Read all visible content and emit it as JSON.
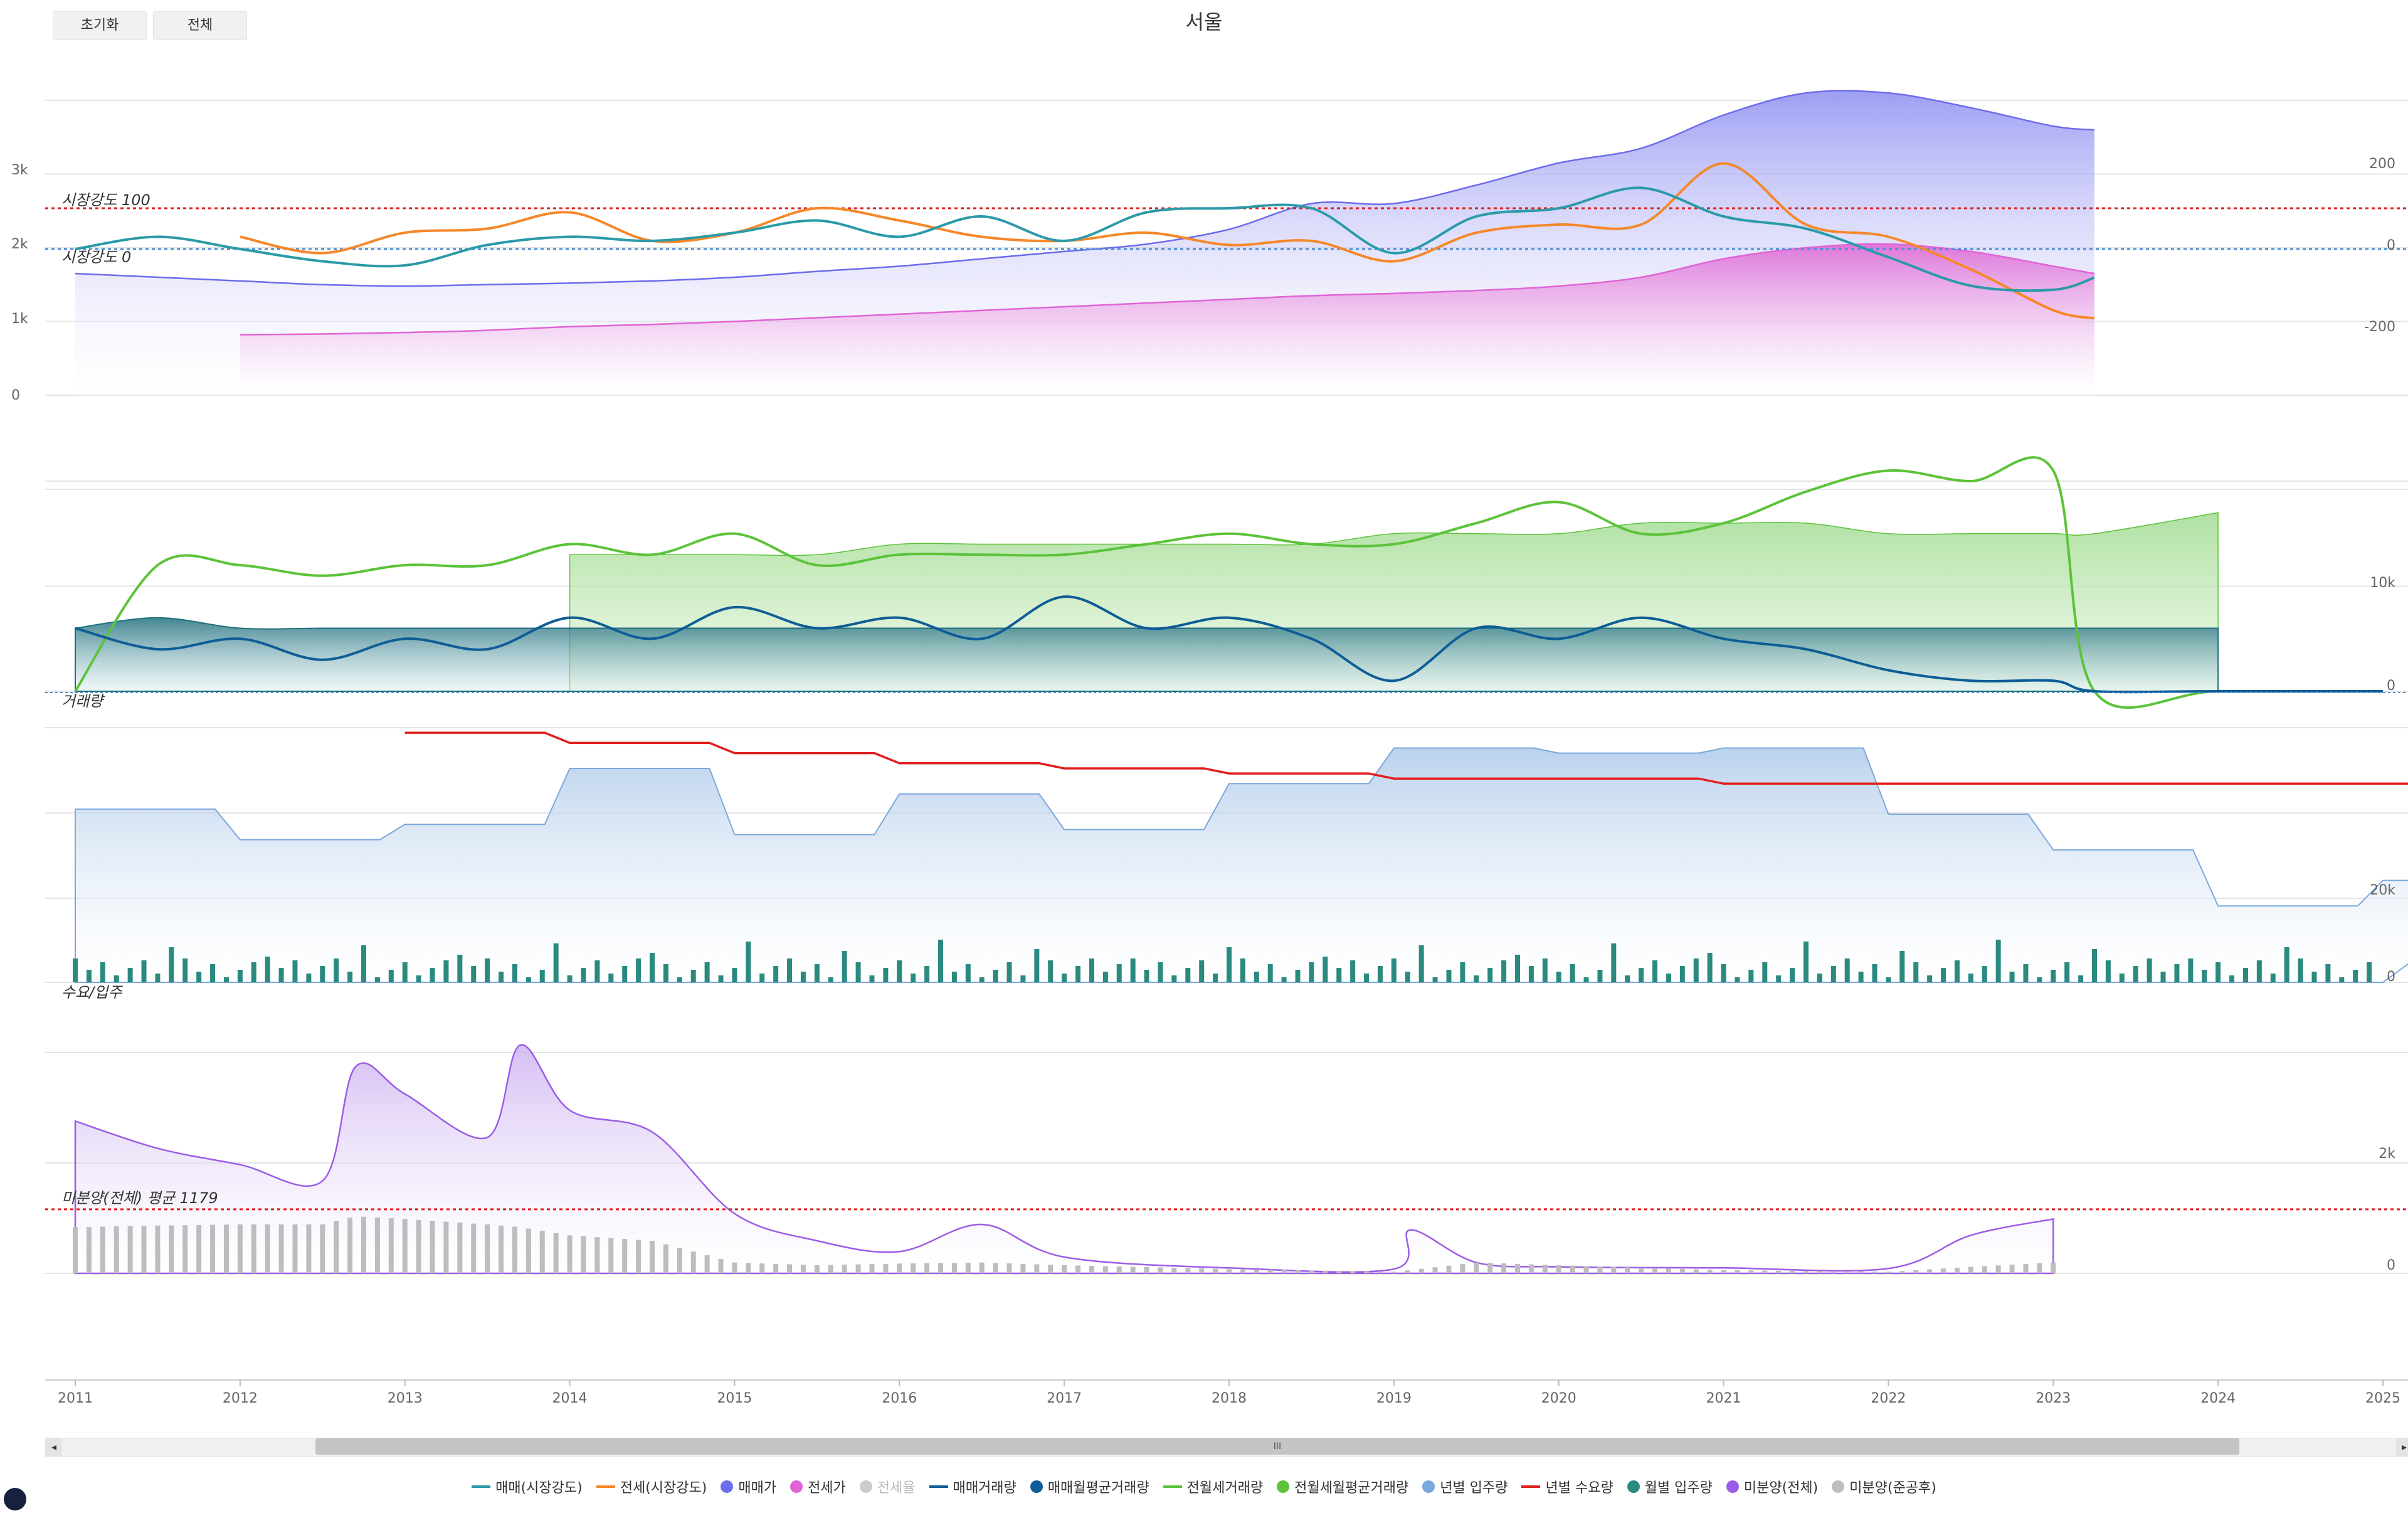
{
  "buttons": {
    "reset": "초기화",
    "all": "전체"
  },
  "title": "서울",
  "panels": {
    "p1": {
      "left_ticks": [
        "3k",
        "2k",
        "1k",
        "0"
      ],
      "right_ticks": [
        "200",
        "0",
        "-200"
      ],
      "ref_labels": [
        "시장강도 100",
        "시장강도 0"
      ]
    },
    "p2": {
      "label": "거래량",
      "right_ticks": [
        "10k",
        "0"
      ]
    },
    "p3": {
      "label": "수요/입주",
      "right_ticks": [
        "20k",
        "0"
      ]
    },
    "p4": {
      "label": "미분양(전체) 평균 1179",
      "right_ticks": [
        "2k",
        "0"
      ]
    }
  },
  "scrollbar": {
    "handle": "III",
    "left_arrow": "◂",
    "right_arrow": "▸"
  },
  "legend": [
    {
      "label": "매매(시장강도)",
      "color": "#2b9aa8",
      "kind": "line",
      "dim": false
    },
    {
      "label": "전세(시장강도)",
      "color": "#f5882a",
      "kind": "line",
      "dim": false
    },
    {
      "label": "매매가",
      "color": "#6c6cec",
      "kind": "dot",
      "dim": false
    },
    {
      "label": "전세가",
      "color": "#e064d6",
      "kind": "dot",
      "dim": false
    },
    {
      "label": "전세율",
      "color": "#cccccc",
      "kind": "dot",
      "dim": true
    },
    {
      "label": "매매거래량",
      "color": "#0e5d96",
      "kind": "line",
      "dim": false
    },
    {
      "label": "매매월평균거래량",
      "color": "#0e5d96",
      "kind": "dot",
      "dim": false
    },
    {
      "label": "전월세거래량",
      "color": "#5cc33a",
      "kind": "line",
      "dim": false
    },
    {
      "label": "전월세월평균거래량",
      "color": "#5cc33a",
      "kind": "dot",
      "dim": false
    },
    {
      "label": "년별 입주량",
      "color": "#7aa8dc",
      "kind": "dot",
      "dim": false
    },
    {
      "label": "년별 수요량",
      "color": "#e02020",
      "kind": "line",
      "dim": false
    },
    {
      "label": "월별 입주량",
      "color": "#2a8a80",
      "kind": "dot",
      "dim": false
    },
    {
      "label": "미분양(전체)",
      "color": "#9b5de5",
      "kind": "dot",
      "dim": false
    },
    {
      "label": "미분양(준공후)",
      "color": "#bdbdbd",
      "kind": "dot",
      "dim": false
    }
  ],
  "chart_data": [
    {
      "type": "area",
      "title": "서울",
      "x": [
        2011,
        2011.5,
        2012,
        2012.5,
        2013,
        2013.5,
        2014,
        2014.5,
        2015,
        2015.5,
        2016,
        2016.5,
        2017,
        2017.5,
        2018,
        2018.5,
        2019,
        2019.5,
        2020,
        2020.5,
        2021,
        2021.5,
        2022,
        2022.5,
        2023,
        2023.25
      ],
      "series": [
        {
          "name": "매매가",
          "values": [
            1.65,
            1.6,
            1.55,
            1.5,
            1.48,
            1.5,
            1.52,
            1.55,
            1.6,
            1.68,
            1.75,
            1.85,
            1.95,
            2.05,
            2.25,
            2.6,
            2.6,
            2.85,
            3.15,
            3.35,
            3.8,
            4.1,
            4.1,
            3.9,
            3.65,
            3.6
          ]
        },
        {
          "name": "전세가",
          "values": [
            null,
            null,
            0.82,
            0.83,
            0.85,
            0.88,
            0.93,
            0.96,
            1.0,
            1.05,
            1.1,
            1.15,
            1.2,
            1.25,
            1.3,
            1.35,
            1.38,
            1.42,
            1.48,
            1.6,
            1.85,
            2.0,
            2.05,
            1.95,
            1.75,
            1.65
          ]
        },
        {
          "name": "매매(시장강도)",
          "values": [
            0,
            30,
            0,
            -30,
            -40,
            10,
            30,
            20,
            40,
            70,
            30,
            80,
            20,
            90,
            100,
            100,
            -10,
            80,
            100,
            150,
            80,
            50,
            -20,
            -90,
            -100,
            -70
          ]
        },
        {
          "name": "전세(시장강도)",
          "values": [
            null,
            null,
            30,
            -10,
            40,
            50,
            90,
            20,
            40,
            100,
            70,
            30,
            20,
            40,
            10,
            20,
            -30,
            40,
            60,
            60,
            210,
            60,
            30,
            -50,
            -150,
            -170
          ]
        }
      ],
      "ylim": [
        0,
        4
      ],
      "y2lim": [
        -300,
        300
      ],
      "annotations": [
        "시장강도 100",
        "시장강도 0"
      ]
    },
    {
      "type": "line",
      "x": [
        2011,
        2011.5,
        2012,
        2012.5,
        2013,
        2013.5,
        2014,
        2014.5,
        2015,
        2015.5,
        2016,
        2016.5,
        2017,
        2017.5,
        2018,
        2018.5,
        2019,
        2019.5,
        2020,
        2020.5,
        2021,
        2021.5,
        2022,
        2022.5,
        2023,
        2023.25,
        2024,
        2025
      ],
      "series": [
        {
          "name": "매매거래량",
          "values": [
            6,
            4,
            5,
            3,
            5,
            4,
            7,
            5,
            8,
            6,
            7,
            5,
            9,
            6,
            7,
            5,
            1,
            6,
            5,
            7,
            5,
            4,
            2,
            1,
            1,
            0,
            0,
            0
          ]
        },
        {
          "name": "매매월평균거래량",
          "values": [
            6,
            7,
            6,
            6,
            6,
            6,
            6,
            6,
            6,
            6,
            6,
            6,
            6,
            6,
            6,
            6,
            6,
            6,
            6,
            6,
            6,
            6,
            6,
            6,
            6,
            6,
            6,
            null
          ]
        },
        {
          "name": "전월세거래량",
          "values": [
            0,
            12,
            12,
            11,
            12,
            12,
            14,
            13,
            15,
            12,
            13,
            13,
            13,
            14,
            15,
            14,
            14,
            16,
            18,
            15,
            16,
            19,
            21,
            20,
            21,
            0,
            0,
            0
          ]
        },
        {
          "name": "전월세월평균거래량",
          "values": [
            null,
            null,
            null,
            null,
            null,
            null,
            13,
            13,
            13,
            13,
            14,
            14,
            14,
            14,
            14,
            14,
            15,
            15,
            15,
            16,
            16,
            16,
            15,
            15,
            15,
            15,
            17,
            null
          ]
        }
      ],
      "ylabel": "거래량"
    },
    {
      "type": "bar",
      "x": [
        2011,
        2012,
        2013,
        2014,
        2015,
        2016,
        2017,
        2018,
        2019,
        2020,
        2021,
        2022,
        2023,
        2024,
        2025
      ],
      "series": [
        {
          "name": "년별 입주량",
          "values": [
            34000,
            28000,
            31000,
            42000,
            29000,
            37000,
            30000,
            39000,
            46000,
            45000,
            46000,
            33000,
            26000,
            15000,
            20000
          ]
        },
        {
          "name": "년별 수요량",
          "values": [
            null,
            null,
            49000,
            47000,
            45000,
            43000,
            42000,
            41000,
            40000,
            40000,
            39000,
            39000,
            39000,
            39000,
            39000
          ]
        }
      ],
      "ylabel": "수요/입주"
    },
    {
      "type": "area",
      "x": [
        2011,
        2011.5,
        2012,
        2012.5,
        2012.7,
        2013,
        2013.5,
        2013.7,
        2014,
        2014.5,
        2015,
        2015.5,
        2016,
        2016.5,
        2017,
        2018,
        2019,
        2019.1,
        2019.5,
        2020,
        2021,
        2022,
        2022.5,
        2023
      ],
      "series": [
        {
          "name": "미분양(전체)",
          "values": [
            2800,
            2300,
            2000,
            1700,
            3800,
            3300,
            2500,
            4200,
            3000,
            2600,
            1100,
            600,
            400,
            900,
            300,
            100,
            80,
            800,
            200,
            120,
            100,
            90,
            700,
            1000
          ]
        },
        {
          "name": "미분양(준공후)",
          "values": [
            850,
            880,
            900,
            900,
            1050,
            1000,
            900,
            850,
            700,
            600,
            200,
            150,
            180,
            200,
            150,
            80,
            30,
            60,
            200,
            150,
            60,
            30,
            120,
            200
          ]
        }
      ],
      "annotations": [
        "미분양(전체) 평균 1179"
      ]
    }
  ],
  "x_axis": {
    "ticks": [
      "2011",
      "2012",
      "2013",
      "2014",
      "2015",
      "2016",
      "2017",
      "2018",
      "2019",
      "2020",
      "2021",
      "2022",
      "2023",
      "2024",
      "2025"
    ]
  }
}
